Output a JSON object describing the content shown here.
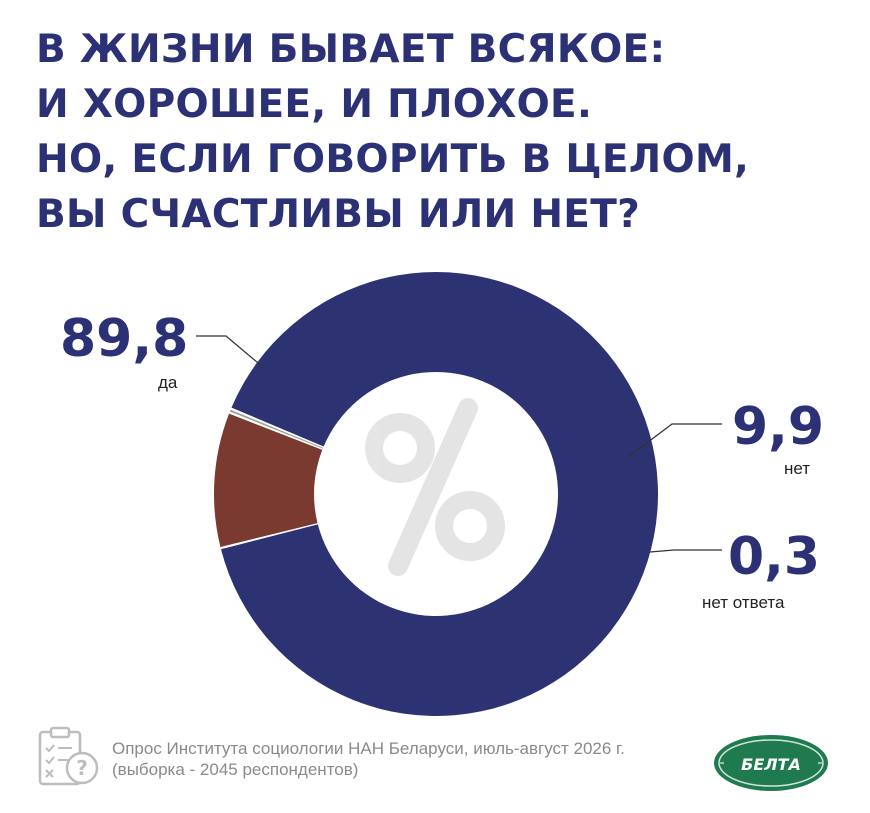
{
  "title_lines": [
    "В ЖИЗНИ БЫВАЕТ ВСЯКОЕ:",
    "И ХОРОШЕЕ, И ПЛОХОЕ.",
    "НО, ЕСЛИ ГОВОРИТЬ В ЦЕЛОМ,",
    "ВЫ СЧАСТЛИВЫ ИЛИ НЕТ?"
  ],
  "chart_data": {
    "type": "pie",
    "variant": "donut",
    "center_symbol": "%",
    "slices": [
      {
        "label": "да",
        "value": 89.8,
        "display": "89,8",
        "color": "#2d3273"
      },
      {
        "label": "нет",
        "value": 9.9,
        "display": "9,9",
        "color": "#7a3a2f"
      },
      {
        "label": "нет ответа",
        "value": 0.3,
        "display": "0,3",
        "color": "#9aa0a6"
      }
    ]
  },
  "footer": {
    "line1": "Опрос Института социологии НАН Беларуси, июль-август 2026 г.",
    "line2": "(выборка - 2045 респондентов)"
  },
  "logo_text": "БЕЛТА",
  "icons": {
    "survey": "clipboard-question-icon",
    "logo": "belta-logo"
  }
}
